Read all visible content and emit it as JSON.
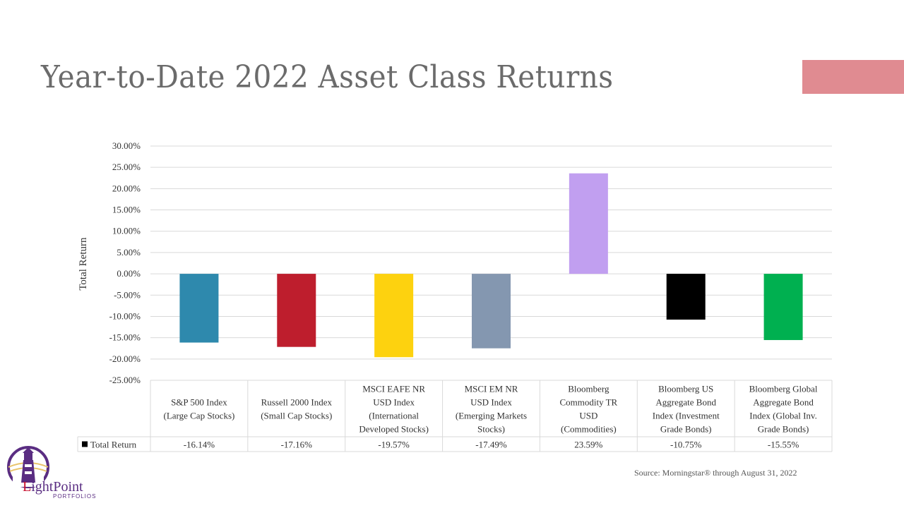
{
  "page": {
    "title": "Year-to-Date 2022 Asset Class Returns",
    "source": "Source: Morningstar® through August 31, 2022",
    "accent_color": "#e08b91",
    "logo": {
      "name_l": "L",
      "name_rest": "ightPoint",
      "sub": "PORTFOLIOS"
    }
  },
  "chart_data": {
    "type": "bar",
    "ylabel": "Total Return",
    "ylim": [
      -25,
      30
    ],
    "ytick_step": 5,
    "grid": true,
    "legend_entry": "Total Return",
    "categories": [
      [
        "S&P 500 Index",
        "(Large Cap Stocks)"
      ],
      [
        "Russell 2000 Index",
        "(Small Cap Stocks)"
      ],
      [
        "MSCI EAFE NR",
        "USD Index",
        "(International",
        "Developed Stocks)"
      ],
      [
        "MSCI EM NR",
        "USD Index",
        "(Emerging Markets",
        "Stocks)"
      ],
      [
        "Bloomberg",
        "Commodity TR",
        "USD",
        "(Commodities)"
      ],
      [
        "Bloomberg US",
        "Aggregate Bond",
        "Index (Investment",
        "Grade Bonds)"
      ],
      [
        "Bloomberg Global",
        "Aggregate Bond",
        "Index (Global Inv.",
        "Grade Bonds)"
      ]
    ],
    "values": [
      -16.14,
      -17.16,
      -19.57,
      -17.49,
      23.59,
      -10.75,
      -15.55
    ],
    "value_labels": [
      "-16.14%",
      "-17.16%",
      "-19.57%",
      "-17.49%",
      "23.59%",
      "-10.75%",
      "-15.55%"
    ],
    "colors": [
      "#2e89ad",
      "#be1e2d",
      "#fdd20f",
      "#8497b0",
      "#c19ff0",
      "#000000",
      "#00b050"
    ]
  }
}
